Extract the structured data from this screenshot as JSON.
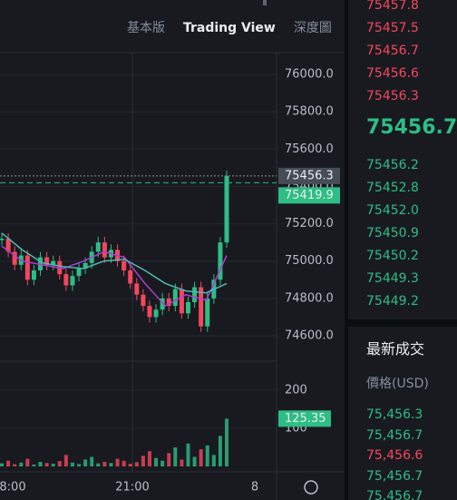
{
  "tabs": [
    "基本版",
    "Trading View",
    "深度圖"
  ],
  "chart_data": {
    "type": "candlestick",
    "values": [
      75120,
      75050,
      74980,
      75030,
      74900,
      74950,
      75020,
      74980,
      75000,
      74930,
      74870,
      74920,
      74960,
      74990,
      75050,
      75100,
      75020,
      75060,
      75000,
      74950,
      74880,
      74820,
      74760,
      74700,
      74740,
      74800,
      74760,
      74850,
      74720,
      74780,
      74860,
      74650,
      74800,
      74900,
      75100,
      75456
    ],
    "moving_averages": [
      {
        "color": "#b13ccf",
        "values": [
          75080,
          75000,
          74980,
          74960,
          75000,
          75050,
          75020,
          74880,
          74760,
          74820,
          74790,
          75030
        ]
      },
      {
        "color": "#4fb8b3",
        "values": [
          75150,
          75060,
          74990,
          74970,
          74960,
          75000,
          75010,
          74950,
          74880,
          74840,
          74830,
          74880
        ]
      }
    ],
    "ylim": [
      74500,
      76100
    ],
    "yticks": [
      {
        "value": 74600,
        "label": "74600.0"
      },
      {
        "value": 74800,
        "label": "74800.0"
      },
      {
        "value": 75000,
        "label": "75000.0"
      },
      {
        "value": 75200,
        "label": "75200.0"
      },
      {
        "value": 75400,
        "label": "75400.0"
      },
      {
        "value": 75600,
        "label": "75600.0"
      },
      {
        "value": 75800,
        "label": "75800.0"
      },
      {
        "value": 76000,
        "label": "76000.0"
      }
    ],
    "price_labels": [
      {
        "value": 75456.3,
        "label": "75456.3",
        "color": "#474d57"
      },
      {
        "value": 75419.9,
        "label": "75419.9",
        "color": "#2ebd85"
      }
    ],
    "volume": {
      "values": [
        8,
        15,
        6,
        10,
        20,
        5,
        12,
        9,
        7,
        14,
        30,
        10,
        6,
        18,
        25,
        8,
        12,
        9,
        20,
        15,
        7,
        11,
        28,
        40,
        22,
        15,
        35,
        50,
        18,
        60,
        25,
        45,
        55,
        30,
        80,
        125.35
      ],
      "ylim": [
        0,
        250
      ],
      "yticks": [
        100,
        200
      ],
      "last_label": {
        "value": 125.35,
        "label": "125.35"
      }
    },
    "xticks": [
      "8:00",
      "21:00",
      "8"
    ]
  },
  "order_book": {
    "asks": [
      "75457.8",
      "75457.5",
      "75456.7",
      "75456.6",
      "75456.3"
    ],
    "last_price": "75456.7",
    "bids": [
      "75456.2",
      "75452.8",
      "75452.0",
      "75450.9",
      "75450.2",
      "75449.3",
      "75449.2"
    ]
  },
  "trades": {
    "title": "最新成交",
    "header": "價格(USD)",
    "rows": [
      {
        "price": "75,456.3",
        "side": "buy"
      },
      {
        "price": "75,456.7",
        "side": "buy"
      },
      {
        "price": "75,456.6",
        "side": "sell"
      },
      {
        "price": "75,456.7",
        "side": "buy"
      },
      {
        "price": "75,456.7",
        "side": "buy"
      }
    ]
  }
}
